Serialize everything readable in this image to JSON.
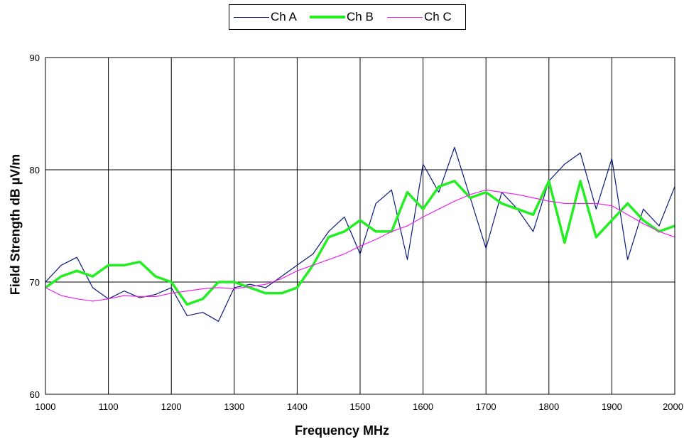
{
  "chart_data": {
    "type": "line",
    "title": "",
    "xlabel": "Frequency MHz",
    "ylabel": "Field Strength dB µV/m",
    "xlim": [
      1000,
      2000
    ],
    "ylim": [
      60,
      90
    ],
    "x_ticks": [
      "1000",
      "1100",
      "1200",
      "1300",
      "1400",
      "1500",
      "1600",
      "1700",
      "1800",
      "1900",
      "2000"
    ],
    "y_ticks": [
      "60",
      "70",
      "80",
      "90"
    ],
    "grid": true,
    "legend_position": "top-center",
    "x": [
      1000,
      1025,
      1050,
      1075,
      1100,
      1125,
      1150,
      1175,
      1200,
      1225,
      1250,
      1275,
      1300,
      1325,
      1350,
      1375,
      1400,
      1425,
      1450,
      1475,
      1500,
      1525,
      1550,
      1575,
      1600,
      1625,
      1650,
      1675,
      1700,
      1725,
      1750,
      1775,
      1800,
      1825,
      1850,
      1875,
      1900,
      1925,
      1950,
      1975,
      2000
    ],
    "series": [
      {
        "name": "Ch A",
        "color": "#0a1a7a",
        "values": [
          70.0,
          71.5,
          72.2,
          69.5,
          68.5,
          69.2,
          68.6,
          68.9,
          69.5,
          67.0,
          67.3,
          66.5,
          69.5,
          69.8,
          69.5,
          70.5,
          71.5,
          72.5,
          74.5,
          75.8,
          72.5,
          77.0,
          78.2,
          72.0,
          80.5,
          78.0,
          82.0,
          77.5,
          73.0,
          78.0,
          76.5,
          74.5,
          79.0,
          80.5,
          81.5,
          76.5,
          81.0,
          72.0,
          76.5,
          75.0,
          78.5
        ]
      },
      {
        "name": "Ch B",
        "color": "#22ee22",
        "values": [
          69.5,
          70.5,
          71.0,
          70.5,
          71.5,
          71.5,
          71.8,
          70.5,
          70.0,
          68.0,
          68.5,
          70.0,
          70.0,
          69.5,
          69.0,
          69.0,
          69.5,
          71.5,
          74.0,
          74.5,
          75.5,
          74.5,
          74.5,
          78.0,
          76.5,
          78.5,
          79.0,
          77.5,
          78.0,
          77.0,
          76.5,
          76.0,
          79.0,
          73.5,
          79.0,
          74.0,
          75.5,
          77.0,
          75.5,
          74.5,
          75.0
        ]
      },
      {
        "name": "Ch C",
        "color": "#ee22ee",
        "values": [
          69.5,
          68.8,
          68.5,
          68.3,
          68.5,
          68.8,
          68.7,
          68.7,
          69.0,
          69.2,
          69.4,
          69.5,
          69.4,
          69.6,
          69.8,
          70.3,
          71.0,
          71.5,
          72.0,
          72.5,
          73.2,
          73.8,
          74.5,
          75.0,
          75.8,
          76.5,
          77.2,
          77.8,
          78.2,
          78.0,
          77.8,
          77.5,
          77.2,
          77.0,
          77.0,
          77.0,
          76.8,
          76.0,
          75.2,
          74.5,
          74.0
        ]
      }
    ]
  },
  "legend": {
    "items": [
      {
        "label": "Ch A",
        "color": "#0a1a7a"
      },
      {
        "label": "Ch B",
        "color": "#22ee22"
      },
      {
        "label": "Ch C",
        "color": "#ee22ee"
      }
    ]
  }
}
